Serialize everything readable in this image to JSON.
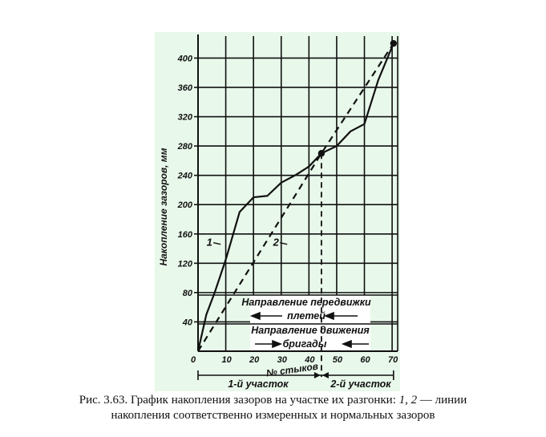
{
  "colors": {
    "panel": "#e8f8ea",
    "ink": "#111111",
    "paper": "#ffffff"
  },
  "chart_data": {
    "type": "line",
    "ylabel": "Накопление зазоров, мм",
    "xlabel": "№ стыков",
    "xlim": [
      0,
      72
    ],
    "ylim": [
      0,
      430
    ],
    "x_ticks": [
      0,
      10,
      20,
      30,
      40,
      50,
      60,
      70
    ],
    "y_ticks": [
      40,
      80,
      120,
      160,
      200,
      240,
      280,
      320,
      360,
      400
    ],
    "grid": true,
    "series": [
      {
        "name": "1",
        "style": "solid",
        "x": [
          0,
          3,
          6,
          10,
          15,
          20,
          25,
          30,
          35,
          40,
          44.5,
          50,
          55,
          60,
          65,
          70.5
        ],
        "y": [
          0,
          50,
          80,
          125,
          190,
          210,
          212,
          230,
          240,
          252,
          270,
          280,
          300,
          310,
          370,
          420
        ]
      },
      {
        "name": "2",
        "style": "dashed",
        "x": [
          0,
          44.5,
          70.5
        ],
        "y": [
          0,
          270,
          420
        ]
      }
    ],
    "markers": [
      {
        "x": 44.5,
        "y": 270
      },
      {
        "x": 70.5,
        "y": 420
      }
    ],
    "vertical_dashed_x": 44.5,
    "series_labels": [
      {
        "text": "1",
        "x": 7,
        "y": 148
      },
      {
        "text": "2",
        "x": 31,
        "y": 148
      }
    ],
    "annotations": {
      "top_text1": "Направление передвижки",
      "top_text2": "плетей",
      "bottom_text1": "Направление движения",
      "bottom_text2": "бригады",
      "section1": "1-й участок",
      "section2": "2-й участок"
    }
  },
  "caption": {
    "line1_pre": "Рис. 3.63. График накопления зазоров на участке их разгонки: ",
    "n1": "1",
    "sep": ", ",
    "n2": "2",
    "line1_post": " — линии",
    "line2": "накопления соответственно измеренных и нормальных зазоров"
  }
}
